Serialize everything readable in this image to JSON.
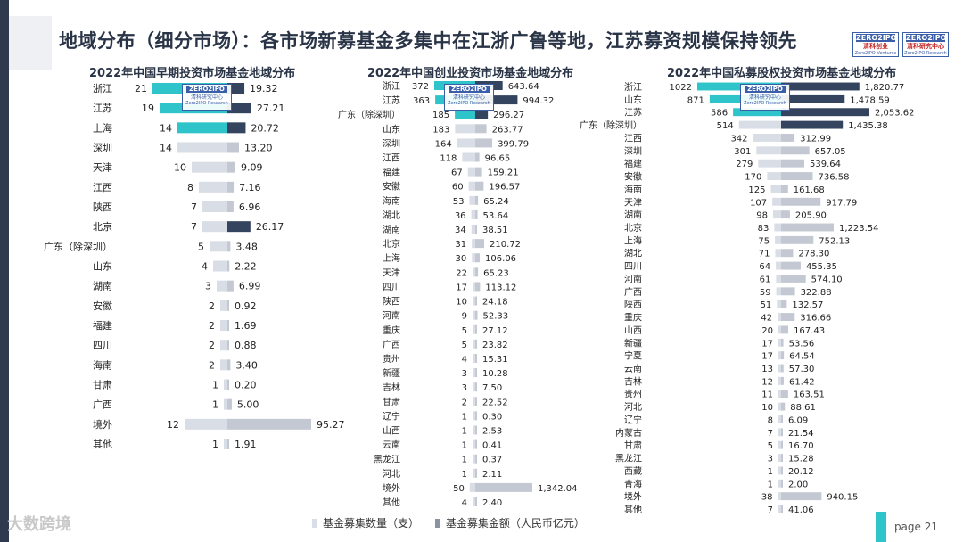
{
  "page_title": "地域分布（细分市场）：各市场新募基金多集中在江浙广鲁等地，江苏募资规模保持领先",
  "logo_left": {
    "top": "ZERO2IPO",
    "mid": "清科创业",
    "bottom": "Zero2IPO Ventures"
  },
  "logo_right": {
    "top": "ZERO2IPO",
    "mid": "清科研究中心",
    "bottom": "Zero2IPO Research"
  },
  "stamp_text": {
    "top": "ZERO2IPO",
    "mid": "清科研究中心",
    "bottom": "Zero2IPO Research"
  },
  "watermark": "大数跨境",
  "page_label": "page  21",
  "legend": {
    "count_label": "基金募集数量（支）",
    "amount_label": "基金募集金额（人民币亿元）"
  },
  "colors": {
    "count_bar": "#d9dde5",
    "amount_bar": "#34435e",
    "highlight_count": "#2ec4c9",
    "amount_light": "#c3c8d2"
  },
  "chart_data": [
    {
      "type": "bar",
      "title": "2022年中国早期投资市场基金地域分布",
      "categories": [
        "浙江",
        "江苏",
        "上海",
        "深圳",
        "天津",
        "江西",
        "陕西",
        "北京",
        "广东（除深圳）",
        "山东",
        "湖南",
        "安徽",
        "福建",
        "四川",
        "海南",
        "甘肃",
        "广西",
        "境外",
        "其他"
      ],
      "series": [
        {
          "name": "基金募集数量（支）",
          "values": [
            21,
            19,
            14,
            14,
            10,
            8,
            7,
            7,
            5,
            4,
            3,
            2,
            2,
            2,
            2,
            1,
            1,
            12,
            1
          ]
        },
        {
          "name": "基金募集金额（人民币亿元）",
          "values": [
            19.32,
            27.21,
            20.72,
            13.2,
            9.09,
            7.16,
            6.96,
            26.17,
            3.48,
            2.22,
            6.99,
            0.92,
            1.69,
            0.88,
            3.4,
            0.2,
            5.0,
            95.27,
            1.91
          ]
        }
      ]
    },
    {
      "type": "bar",
      "title": "2022年中国创业投资市场基金地域分布",
      "categories": [
        "浙江",
        "江苏",
        "广东（除深圳）",
        "山东",
        "深圳",
        "江西",
        "福建",
        "安徽",
        "海南",
        "湖北",
        "湖南",
        "北京",
        "上海",
        "天津",
        "四川",
        "陕西",
        "河南",
        "重庆",
        "广西",
        "贵州",
        "新疆",
        "吉林",
        "甘肃",
        "辽宁",
        "山西",
        "云南",
        "黑龙江",
        "河北",
        "境外",
        "其他"
      ],
      "series": [
        {
          "name": "基金募集数量（支）",
          "values": [
            372,
            363,
            185,
            183,
            164,
            118,
            67,
            60,
            53,
            36,
            34,
            31,
            30,
            22,
            17,
            10,
            9,
            5,
            5,
            4,
            3,
            3,
            2,
            1,
            1,
            1,
            1,
            1,
            50,
            4
          ]
        },
        {
          "name": "基金募集金额（人民币亿元）",
          "values": [
            643.64,
            994.32,
            296.27,
            263.77,
            399.79,
            96.65,
            159.21,
            196.57,
            65.24,
            53.64,
            38.51,
            210.72,
            106.06,
            65.23,
            113.12,
            24.18,
            52.33,
            27.12,
            23.82,
            15.31,
            10.28,
            7.5,
            22.52,
            0.3,
            2.53,
            0.41,
            0.37,
            2.11,
            1342.04,
            2.4
          ]
        }
      ]
    },
    {
      "type": "bar",
      "title": "2022年中国私募股权投资市场基金地域分布",
      "categories": [
        "浙江",
        "山东",
        "江苏",
        "广东（除深圳）",
        "江西",
        "深圳",
        "福建",
        "安徽",
        "海南",
        "天津",
        "湖南",
        "北京",
        "上海",
        "湖北",
        "四川",
        "河南",
        "广西",
        "陕西",
        "重庆",
        "山西",
        "新疆",
        "宁夏",
        "云南",
        "吉林",
        "贵州",
        "河北",
        "辽宁",
        "内蒙古",
        "甘肃",
        "黑龙江",
        "西藏",
        "青海",
        "境外",
        "其他"
      ],
      "series": [
        {
          "name": "基金募集数量（支）",
          "values": [
            1022,
            871,
            586,
            514,
            342,
            301,
            279,
            170,
            125,
            107,
            98,
            83,
            75,
            71,
            64,
            61,
            59,
            51,
            42,
            20,
            17,
            17,
            13,
            12,
            11,
            10,
            8,
            7,
            5,
            3,
            1,
            1,
            38,
            7
          ]
        },
        {
          "name": "基金募集金额（人民币亿元）",
          "values": [
            1820.77,
            1478.59,
            2053.62,
            1435.38,
            312.99,
            657.05,
            539.64,
            736.58,
            161.68,
            917.79,
            205.9,
            1223.54,
            752.13,
            278.3,
            455.35,
            574.1,
            322.88,
            132.57,
            316.66,
            167.43,
            53.56,
            64.54,
            57.3,
            61.42,
            163.51,
            88.61,
            6.09,
            21.54,
            16.7,
            15.28,
            20.12,
            2.0,
            940.15,
            41.06
          ]
        }
      ]
    }
  ]
}
